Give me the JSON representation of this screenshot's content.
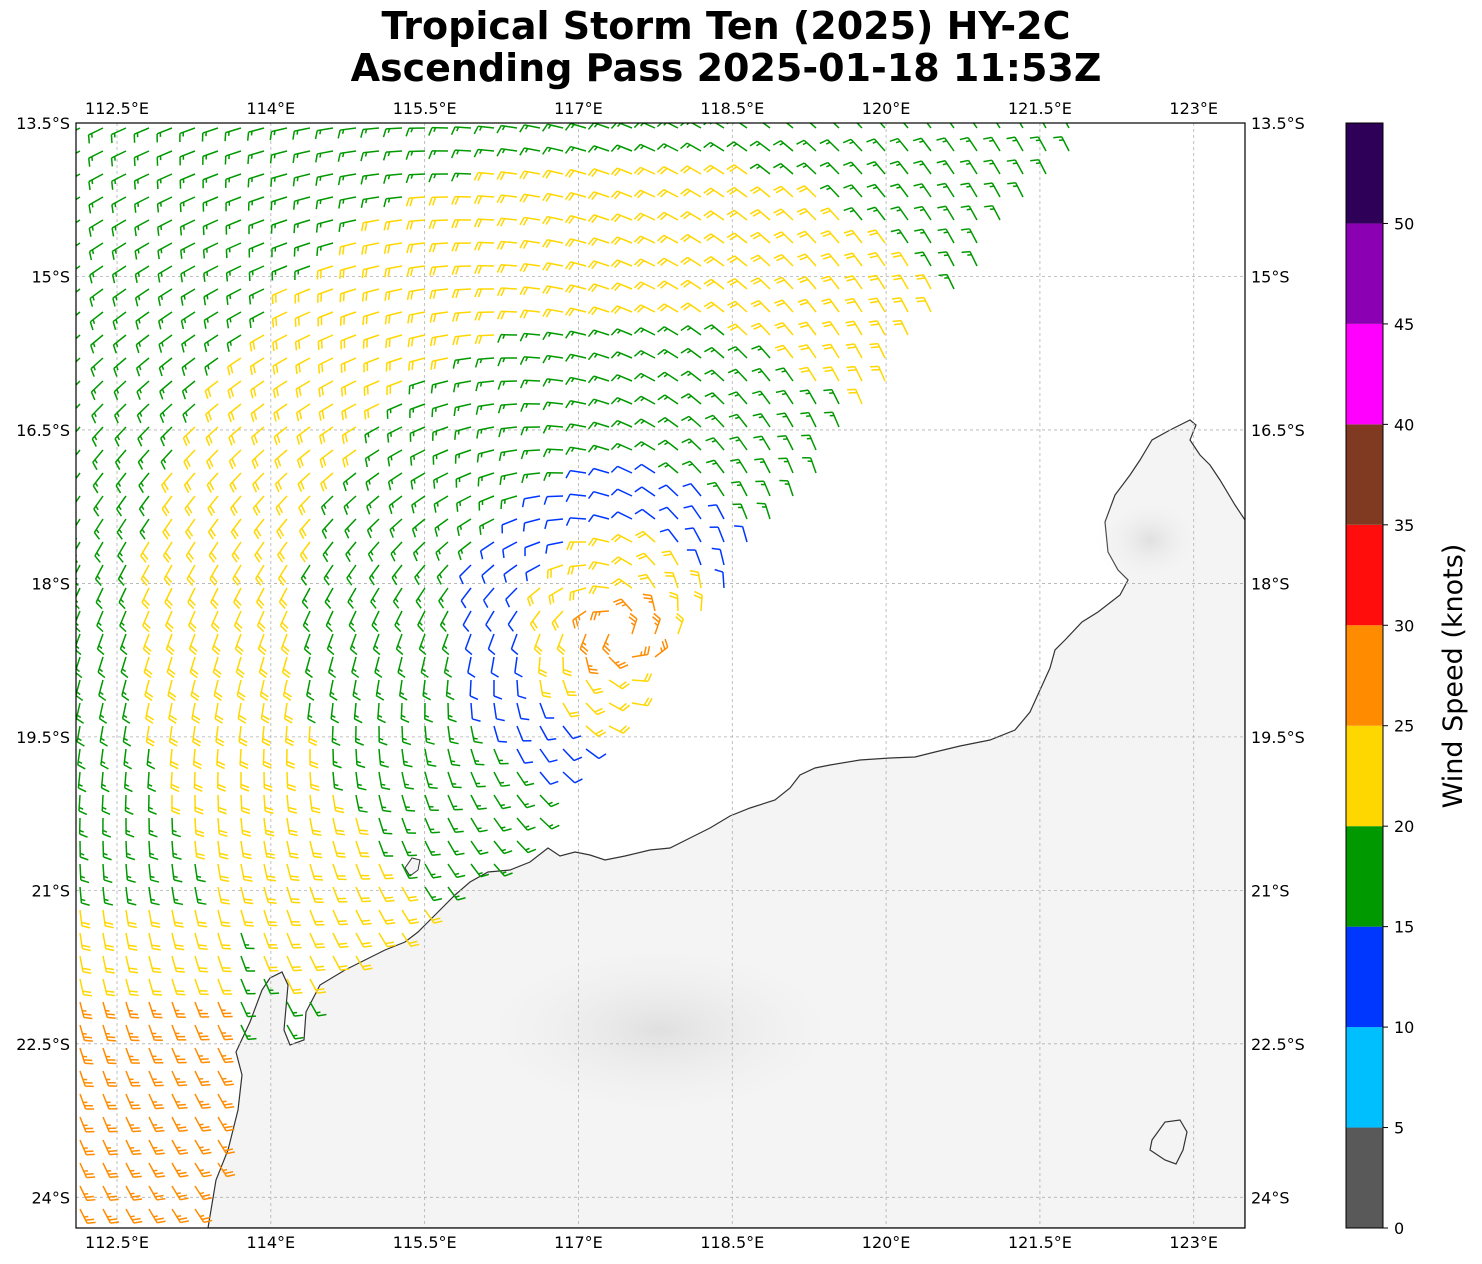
{
  "title_line1": "Tropical Storm Ten (2025) HY-2C",
  "title_line2": "Ascending Pass 2025-01-18 11:53Z",
  "lon_ticks": [
    "112.5°E",
    "114°E",
    "115.5°E",
    "117°E",
    "118.5°E",
    "120°E",
    "121.5°E",
    "123°E"
  ],
  "lat_ticks": [
    "13.5°S",
    "15°S",
    "16.5°S",
    "18°S",
    "19.5°S",
    "21°S",
    "22.5°S",
    "24°S"
  ],
  "colorbar": {
    "label": "Wind Speed (knots)",
    "tick_labels": [
      "0",
      "5",
      "10",
      "15",
      "20",
      "25",
      "30",
      "35",
      "40",
      "45",
      "50"
    ],
    "bins": [
      {
        "min": 0,
        "max": 5,
        "color": "#595959"
      },
      {
        "min": 5,
        "max": 10,
        "color": "#00bfff"
      },
      {
        "min": 10,
        "max": 15,
        "color": "#0037ff"
      },
      {
        "min": 15,
        "max": 20,
        "color": "#009900"
      },
      {
        "min": 20,
        "max": 25,
        "color": "#ffd700"
      },
      {
        "min": 25,
        "max": 30,
        "color": "#ff8c00"
      },
      {
        "min": 30,
        "max": 35,
        "color": "#ff0d0d"
      },
      {
        "min": 35,
        "max": 40,
        "color": "#7f3a21"
      },
      {
        "min": 40,
        "max": 45,
        "color": "#ff00ff"
      },
      {
        "min": 45,
        "max": 50,
        "color": "#8b00b3"
      },
      {
        "min": 50,
        "max": 55,
        "color": "#2e0057"
      }
    ]
  },
  "map_extent": {
    "lon_min": 112.1,
    "lon_max": 123.5,
    "lat_min": -24.3,
    "lat_max": -13.5
  },
  "storm_center": {
    "lon": 117.4,
    "lat": -18.5
  },
  "colors": {
    "coastline": "#333333",
    "grid": "#b0b0b0",
    "land": "#f4f4f4"
  }
}
